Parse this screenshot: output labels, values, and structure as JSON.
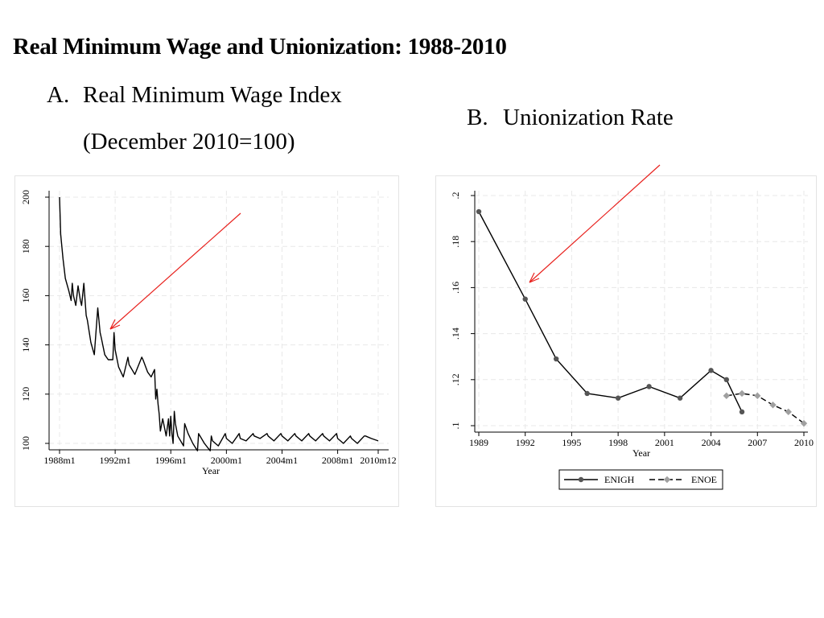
{
  "slide": {
    "title": "Real Minimum Wage and Unionization: 1988-2010",
    "panel_a": {
      "letter": "A.",
      "title_line1": "Real Minimum Wage Index",
      "title_line2": "(December 2010=100)"
    },
    "panel_b": {
      "letter": "B.",
      "title": "Unionization Rate"
    }
  },
  "colors": {
    "line": "#000000",
    "enigh_marker": "#555555",
    "enoe_marker": "#a0a0a0",
    "arrow": "#e8211d",
    "grid": "#e8e8e8"
  },
  "chart_data": [
    {
      "type": "line",
      "title": "",
      "xlabel": "Year",
      "ylabel": "",
      "ylim": [
        100,
        200
      ],
      "xlim": [
        "1988m1",
        "2010m12"
      ],
      "yticks": [
        "100",
        "120",
        "140",
        "160",
        "180",
        "200"
      ],
      "xticks": [
        "1988m1",
        "1992m1",
        "1996m1",
        "2000m1",
        "2004m1",
        "2008m1",
        "2010m12"
      ],
      "grid": true,
      "series": [
        {
          "x": [
            "1988m1",
            "1988m2",
            "1988m4",
            "1988m6",
            "1988m9",
            "1988m11",
            "1988m12",
            "1989m1",
            "1989m3",
            "1989m5",
            "1989m7",
            "1989m8",
            "1989m10",
            "1989m12",
            "1990m1",
            "1990m4",
            "1990m7",
            "1990m10",
            "1990m12",
            "1991m1",
            "1991m4",
            "1991m7",
            "1991m11",
            "1991m12",
            "1992m1",
            "1992m4",
            "1992m8",
            "1992m12",
            "1993m1",
            "1993m6",
            "1993m12",
            "1994m1",
            "1994m5",
            "1994m8",
            "1994m11",
            "1994m12",
            "1995m1",
            "1995m2",
            "1995m3",
            "1995m4",
            "1995m6",
            "1995m9",
            "1995m11",
            "1995m12",
            "1996m1",
            "1996m2",
            "1996m3",
            "1996m4",
            "1996m5",
            "1996m7",
            "1996m12",
            "1997m1",
            "1997m4",
            "1997m8",
            "1997m12",
            "1998m1",
            "1998m6",
            "1998m11",
            "1998m12",
            "1999m1",
            "1999m6",
            "1999m12",
            "2000m1",
            "2000m6",
            "2000m12",
            "2001m1",
            "2001m6",
            "2001m12",
            "2002m1",
            "2002m6",
            "2002m12",
            "2003m1",
            "2003m6",
            "2003m12",
            "2004m1",
            "2004m6",
            "2004m12",
            "2005m1",
            "2005m6",
            "2005m12",
            "2006m1",
            "2006m6",
            "2006m12",
            "2007m1",
            "2007m6",
            "2007m12",
            "2008m1",
            "2008m6",
            "2008m12",
            "2009m1",
            "2009m6",
            "2009m12",
            "2010m1",
            "2010m6",
            "2010m12"
          ],
          "values": [
            200,
            185,
            175,
            167,
            162,
            158,
            165,
            160,
            156,
            164,
            158,
            156,
            165,
            152,
            150,
            141,
            136,
            155,
            145,
            143,
            136,
            134,
            134,
            145,
            138,
            131,
            127,
            135,
            132,
            128,
            135,
            134,
            129,
            127,
            130,
            118,
            122,
            116,
            112,
            105,
            110,
            103,
            110,
            103,
            111,
            104,
            100,
            113,
            108,
            103,
            99,
            108,
            104,
            100,
            97,
            104,
            100,
            97,
            103,
            101,
            99,
            104,
            102,
            100,
            104,
            102,
            101,
            104,
            103,
            102,
            104,
            103,
            101,
            104,
            103,
            101,
            104,
            103,
            101,
            104,
            103,
            101,
            104,
            103,
            101,
            104,
            102,
            100,
            103,
            102,
            100,
            103,
            103,
            102,
            101
          ]
        }
      ]
    },
    {
      "type": "line",
      "title": "",
      "xlabel": "Year",
      "ylabel": "",
      "ylim": [
        0.1,
        0.2
      ],
      "xlim": [
        1989,
        2010
      ],
      "yticks": [
        ".1",
        ".12",
        ".14",
        ".16",
        ".18",
        ".2"
      ],
      "xticks": [
        "1989",
        "1992",
        "1995",
        "1998",
        "2001",
        "2004",
        "2007",
        "2010"
      ],
      "grid": true,
      "legend": "bottom",
      "series": [
        {
          "name": "ENIGH",
          "style": "solid",
          "x": [
            1989,
            1992,
            1994,
            1996,
            1998,
            2000,
            2002,
            2004,
            2005,
            2006
          ],
          "values": [
            0.193,
            0.155,
            0.129,
            0.114,
            0.112,
            0.117,
            0.112,
            0.124,
            0.12,
            0.106
          ]
        },
        {
          "name": "ENOE",
          "style": "dashed",
          "x": [
            2005,
            2006,
            2007,
            2008,
            2009,
            2010
          ],
          "values": [
            0.113,
            0.114,
            0.113,
            0.109,
            0.106,
            0.101
          ]
        }
      ]
    }
  ]
}
